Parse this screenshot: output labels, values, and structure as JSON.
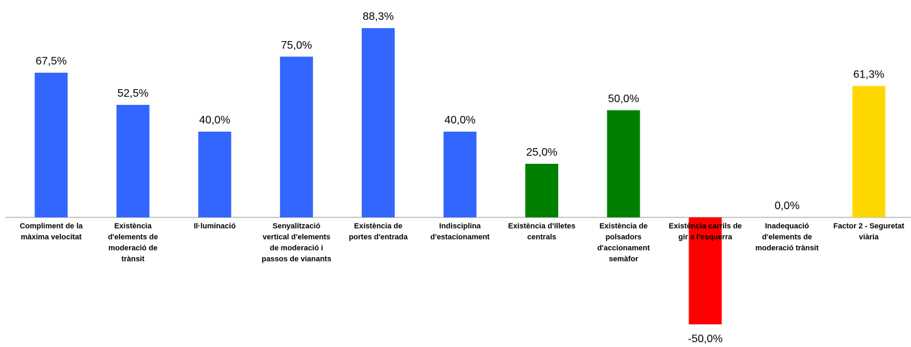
{
  "chart_data": {
    "type": "bar",
    "categories": [
      "Compliment de la\nmàxima velocitat",
      "Existència\nd'elements de\nmoderació de\ntrànsit",
      "Il·luminació",
      "Senyalització\nvertical d'elements\nde moderació i\npassos de vianants",
      "Existència de\nportes d'entrada",
      "Indisciplina\nd'estacionament",
      "Existència d'illetes\ncentrals",
      "Existència de\npolsadors\nd'accionament\nsemàfor",
      "Existència carrils de\ngir a l'esquerra",
      "Inadequació\nd'elements de\nmoderació trànsit",
      "Factor 2 - Seguretat\nviària"
    ],
    "values": [
      67.5,
      52.5,
      40.0,
      75.0,
      88.3,
      40.0,
      25.0,
      50.0,
      -50.0,
      0.0,
      61.3
    ],
    "value_labels": [
      "67,5%",
      "52,5%",
      "40,0%",
      "75,0%",
      "88,3%",
      "40,0%",
      "25,0%",
      "50,0%",
      "-50,0%",
      "0,0%",
      "61,3%"
    ],
    "colors": [
      "#3366ff",
      "#3366ff",
      "#3366ff",
      "#3366ff",
      "#3366ff",
      "#3366ff",
      "#008000",
      "#008000",
      "#ff0000",
      "#ffd700",
      "#ffd700"
    ],
    "grid": false
  }
}
